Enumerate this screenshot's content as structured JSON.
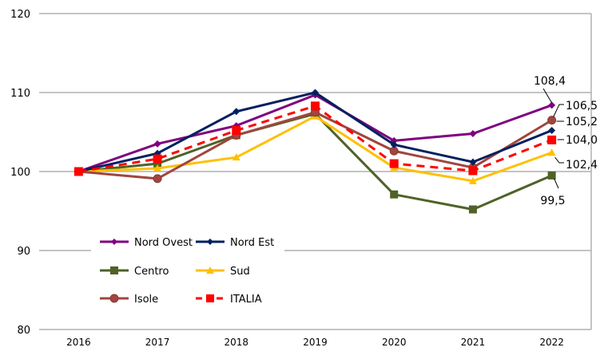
{
  "chart_data": {
    "type": "line",
    "categories": [
      "2016",
      "2017",
      "2018",
      "2019",
      "2020",
      "2021",
      "2022"
    ],
    "ylim": [
      80,
      120
    ],
    "yticks": [
      80,
      90,
      100,
      110,
      120
    ],
    "grid": true,
    "legend": "bottom-left inside",
    "series": [
      {
        "name": "Nord Ovest",
        "color": "#7F007F",
        "marker": "diamond",
        "dashed": false,
        "values": [
          100,
          103.5,
          105.8,
          109.7,
          103.9,
          104.8,
          108.4
        ],
        "end_label": "108,4"
      },
      {
        "name": "Nord Est",
        "color": "#00205F",
        "marker": "diamond",
        "dashed": false,
        "values": [
          100,
          102.3,
          107.6,
          110.0,
          103.4,
          101.2,
          105.2
        ],
        "end_label": "105,2"
      },
      {
        "name": "Centro",
        "color": "#4F6228",
        "marker": "square",
        "dashed": false,
        "values": [
          100,
          101.0,
          104.6,
          107.3,
          97.1,
          95.2,
          99.5
        ],
        "end_label": "99,5"
      },
      {
        "name": "Sud",
        "color": "#FFC000",
        "marker": "triangle",
        "dashed": false,
        "values": [
          100,
          100.4,
          101.8,
          107.0,
          100.5,
          98.8,
          102.4
        ],
        "end_label": "102,4"
      },
      {
        "name": "Isole",
        "color": "#A0453F",
        "marker": "circle",
        "dashed": false,
        "values": [
          100,
          99.1,
          104.6,
          107.5,
          102.6,
          100.5,
          106.5
        ],
        "end_label": "106,5"
      },
      {
        "name": "ITALIA",
        "color": "#FF0000",
        "marker": "square",
        "dashed": true,
        "values": [
          100,
          101.6,
          105.2,
          108.3,
          101.0,
          100.1,
          104.0
        ],
        "end_label": "104,0"
      }
    ]
  }
}
